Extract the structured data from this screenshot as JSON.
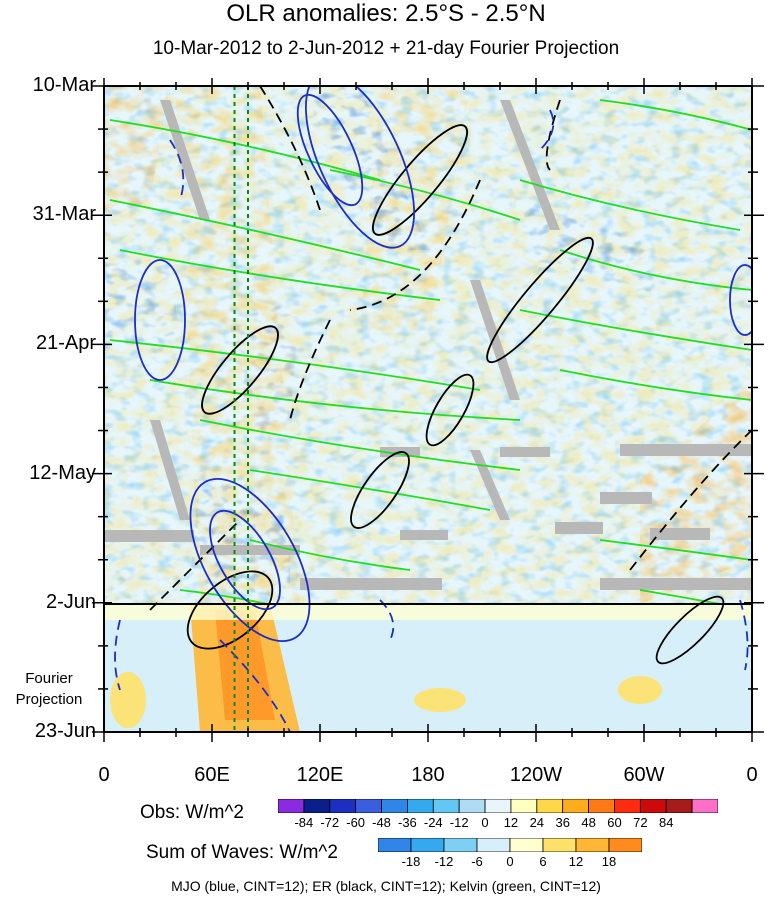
{
  "chart_data": {
    "type": "heatmap",
    "title": "OLR anomalies: 2.5°S - 2.5°N",
    "subtitle": "10-Mar-2012 to 2-Jun-2012 + 21-day Fourier Projection",
    "x_tick_labels": [
      "0",
      "60E",
      "120E",
      "180",
      "120W",
      "60W",
      "0"
    ],
    "x_ticks_deg_east": [
      0,
      60,
      120,
      180,
      240,
      300,
      360
    ],
    "xlim": [
      0,
      360
    ],
    "y_tick_labels": [
      "10-Mar",
      "31-Mar",
      "21-Apr",
      "12-May",
      "2-Jun",
      "23-Jun"
    ],
    "ylim": [
      "10-Mar-2012",
      "23-Jun-2012"
    ],
    "projection_label": [
      "Fourier",
      "Projection"
    ],
    "projection_start": "2-Jun",
    "obs_legend": {
      "title": "Obs: W/m^2",
      "levels": [
        -84,
        -72,
        -60,
        -48,
        -36,
        -24,
        -12,
        0,
        12,
        24,
        36,
        48,
        60,
        72,
        84
      ],
      "colors": [
        "#8a2be2",
        "#0a1f8c",
        "#1b2fc4",
        "#3a5ee0",
        "#2f86e8",
        "#35a9f0",
        "#62c8f3",
        "#aedcf5",
        "#e8f6fb",
        "#ffffc0",
        "#ffd84a",
        "#ffac1c",
        "#ff7a14",
        "#ff2b0f",
        "#cc0a0a",
        "#a81b1b",
        "#ff6fc8"
      ]
    },
    "waves_legend": {
      "title": "Sum of Waves: W/m^2",
      "levels": [
        -18,
        -12,
        -6,
        0,
        6,
        12,
        18
      ],
      "colors": [
        "#2f86e8",
        "#35a9f0",
        "#7dcff4",
        "#d6eff9",
        "#ffffd2",
        "#ffe169",
        "#ffb733",
        "#ff8a1e"
      ]
    },
    "contours_note": "MJO (blue, CINT=12); ER (black, CINT=12); Kelvin (green, CINT=12)",
    "reference_lines_deg_east": [
      72.5,
      80
    ]
  }
}
